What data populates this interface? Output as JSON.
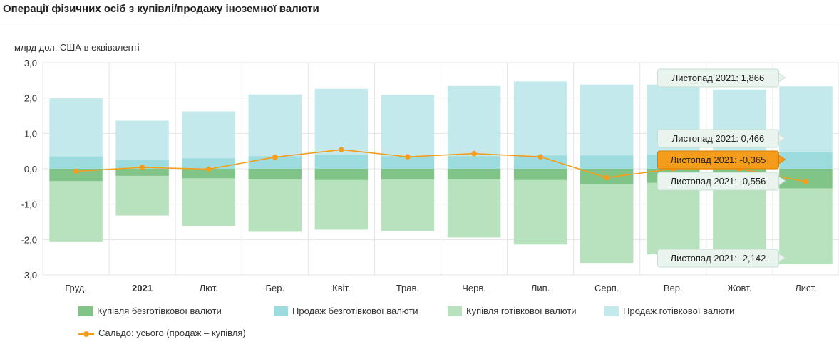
{
  "page": {
    "title": "Операції фізичних осіб з купівлі/продажу іноземної валюти",
    "unit_label": "млрд дол. США в еквіваленті"
  },
  "colors": {
    "buy_noncash": "#80c587",
    "sell_noncash": "#9cdcde",
    "buy_cash": "#b7e2bd",
    "sell_cash": "#c4e9ec",
    "balance": "#f59c1a",
    "grid": "#e4e4e4"
  },
  "chart_data": {
    "type": "bar",
    "stacked": true,
    "categories": [
      "Груд.",
      "2021",
      "Лют.",
      "Бер.",
      "Квіт.",
      "Трав.",
      "Черв.",
      "Лип.",
      "Серп.",
      "Вер.",
      "Жовт.",
      "Лист."
    ],
    "bold_categories": [
      "2021"
    ],
    "ylim": [
      -3.0,
      3.0
    ],
    "yticks": [
      "3,0",
      "2,0",
      "1,0",
      "0,0",
      "-1,0",
      "-2,0",
      "-3,0"
    ],
    "ytick_values": [
      3,
      2,
      1,
      0,
      -1,
      -2,
      -3
    ],
    "grid": true,
    "series": [
      {
        "name": "Купівля безготівкової валюти",
        "kind": "bar",
        "color": "#80c587",
        "values": [
          -0.35,
          -0.2,
          -0.27,
          -0.3,
          -0.32,
          -0.3,
          -0.3,
          -0.32,
          -0.44,
          -0.4,
          -0.42,
          -0.556
        ]
      },
      {
        "name": "Продаж безготівкової валюти",
        "kind": "bar",
        "color": "#9cdcde",
        "values": [
          0.35,
          0.26,
          0.3,
          0.36,
          0.4,
          0.36,
          0.36,
          0.38,
          0.38,
          0.4,
          0.42,
          0.466
        ]
      },
      {
        "name": "Купівля готівкової валюти",
        "kind": "bar",
        "color": "#b7e2bd",
        "values": [
          -1.72,
          -1.12,
          -1.35,
          -1.48,
          -1.4,
          -1.46,
          -1.64,
          -1.82,
          -2.22,
          -2.02,
          -1.88,
          -2.142
        ]
      },
      {
        "name": "Продаж готівкової валюти",
        "kind": "bar",
        "color": "#c4e9ec",
        "values": [
          1.64,
          1.1,
          1.32,
          1.74,
          1.86,
          1.73,
          1.98,
          2.09,
          2.0,
          1.98,
          1.82,
          1.866
        ]
      },
      {
        "name": "Сальдо: усього (продаж – купівля)",
        "kind": "line",
        "color": "#f59c1a",
        "values": [
          -0.07,
          0.04,
          -0.01,
          0.33,
          0.54,
          0.34,
          0.43,
          0.34,
          -0.25,
          0.0,
          0.0,
          -0.365
        ]
      }
    ],
    "tooltips": [
      {
        "text": "Листопад 2021: 1,866",
        "style": "normal"
      },
      {
        "text": "Листопад 2021: 0,466",
        "style": "normal"
      },
      {
        "text": "Листопад 2021: -0,365",
        "style": "highlight"
      },
      {
        "text": "Листопад 2021: -0,556",
        "style": "normal"
      },
      {
        "text": "Листопад 2021: -2,142",
        "style": "normal"
      }
    ]
  }
}
